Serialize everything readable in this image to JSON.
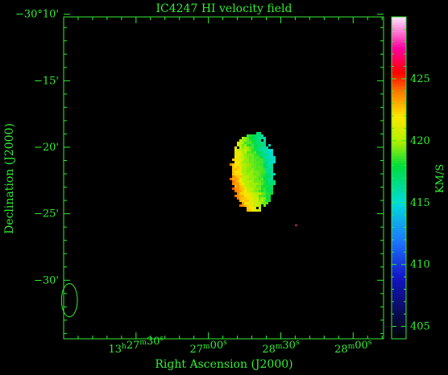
{
  "chart_data": {
    "type": "heatmap",
    "title": "IC4247   HI velocity field",
    "xlabel": "Right Ascension (J2000)",
    "ylabel": "Declination (J2000)",
    "colorbar_label": "KM/S",
    "x_ticks": [
      {
        "label": "13h27m30s",
        "h": "13",
        "m": "27",
        "s": "30",
        "x": 0
      },
      {
        "label": "27m00s",
        "m": "27",
        "s": "00",
        "x": 1
      },
      {
        "label": "28m30s",
        "m": "28",
        "s": "30",
        "x": 2
      },
      {
        "label": "28m00s",
        "m": "28",
        "s": "00",
        "x": 3
      }
    ],
    "y_ticks": [
      {
        "label": "−30°10'",
        "y": -10
      },
      {
        "label": "−15'",
        "y": -15
      },
      {
        "label": "−20'",
        "y": -20
      },
      {
        "label": "−25'",
        "y": -25
      },
      {
        "label": "−30'",
        "y": -30
      }
    ],
    "xlim": [
      -1,
      3.42
    ],
    "ylim": [
      -34.4,
      -10.2
    ],
    "colorbar": {
      "range": [
        404,
        430
      ],
      "ticks": [
        {
          "label": "405",
          "value": 405
        },
        {
          "label": "410",
          "value": 410
        },
        {
          "label": "415",
          "value": 415
        },
        {
          "label": "420",
          "value": 420
        },
        {
          "label": "425",
          "value": 425
        }
      ]
    },
    "velocity_field": {
      "center": {
        "x": 1.6,
        "y": -21.8
      },
      "extent_x": [
        1.3,
        1.9
      ],
      "extent_y": [
        -24.4,
        -18.6
      ],
      "velocity_range": [
        414,
        425
      ]
    },
    "beam": {
      "x": -0.92,
      "y": -31.5,
      "width": 0.22,
      "height": 2.5
    },
    "isolated_pixel": {
      "x": 2.2,
      "y": -25.8,
      "velocity": 428
    },
    "colors": {
      "axes": "#33ee33",
      "background": "#000000"
    }
  }
}
